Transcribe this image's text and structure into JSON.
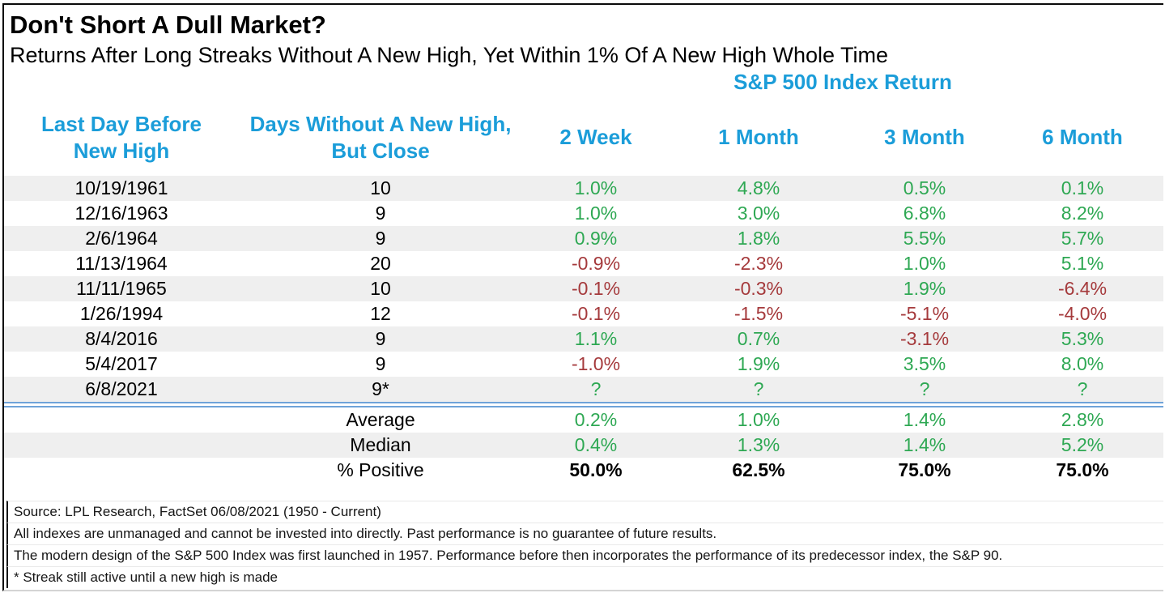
{
  "title": "Don't Short A Dull Market?",
  "subtitle": "Returns After Long Streaks Without A New High, Yet Within 1% Of A New High Whole Time",
  "colors": {
    "header_blue": "#1b9dd9",
    "positive_green": "#2ea853",
    "negative_red": "#a53a3c",
    "row_alt_gray": "#efefef",
    "divider_blue": "#6fa3d9"
  },
  "chart_data": {
    "type": "table",
    "title": "Don't Short A Dull Market?",
    "subtitle": "Returns After Long Streaks Without A New High, Yet Within 1% Of A New High Whole Time",
    "group_header": "S&P 500 Index Return",
    "columns": [
      "Last Day Before New High",
      "Days Without A New High, But Close",
      "2 Week",
      "1 Month",
      "3 Month",
      "6 Month"
    ],
    "rows": [
      {
        "date": "10/19/1961",
        "days": "10",
        "returns": [
          {
            "v": "1.0%",
            "sign": "pos"
          },
          {
            "v": "4.8%",
            "sign": "pos"
          },
          {
            "v": "0.5%",
            "sign": "pos"
          },
          {
            "v": "0.1%",
            "sign": "pos"
          }
        ]
      },
      {
        "date": "12/16/1963",
        "days": "9",
        "returns": [
          {
            "v": "1.0%",
            "sign": "pos"
          },
          {
            "v": "3.0%",
            "sign": "pos"
          },
          {
            "v": "6.8%",
            "sign": "pos"
          },
          {
            "v": "8.2%",
            "sign": "pos"
          }
        ]
      },
      {
        "date": "2/6/1964",
        "days": "9",
        "returns": [
          {
            "v": "0.9%",
            "sign": "pos"
          },
          {
            "v": "1.8%",
            "sign": "pos"
          },
          {
            "v": "5.5%",
            "sign": "pos"
          },
          {
            "v": "5.7%",
            "sign": "pos"
          }
        ]
      },
      {
        "date": "11/13/1964",
        "days": "20",
        "returns": [
          {
            "v": "-0.9%",
            "sign": "neg"
          },
          {
            "v": "-2.3%",
            "sign": "neg"
          },
          {
            "v": "1.0%",
            "sign": "pos"
          },
          {
            "v": "5.1%",
            "sign": "pos"
          }
        ]
      },
      {
        "date": "11/11/1965",
        "days": "10",
        "returns": [
          {
            "v": "-0.1%",
            "sign": "neg"
          },
          {
            "v": "-0.3%",
            "sign": "neg"
          },
          {
            "v": "1.9%",
            "sign": "pos"
          },
          {
            "v": "-6.4%",
            "sign": "neg"
          }
        ]
      },
      {
        "date": "1/26/1994",
        "days": "12",
        "returns": [
          {
            "v": "-0.1%",
            "sign": "neg"
          },
          {
            "v": "-1.5%",
            "sign": "neg"
          },
          {
            "v": "-5.1%",
            "sign": "neg"
          },
          {
            "v": "-4.0%",
            "sign": "neg"
          }
        ]
      },
      {
        "date": "8/4/2016",
        "days": "9",
        "returns": [
          {
            "v": "1.1%",
            "sign": "pos"
          },
          {
            "v": "0.7%",
            "sign": "pos"
          },
          {
            "v": "-3.1%",
            "sign": "neg"
          },
          {
            "v": "5.3%",
            "sign": "pos"
          }
        ]
      },
      {
        "date": "5/4/2017",
        "days": "9",
        "returns": [
          {
            "v": "-1.0%",
            "sign": "neg"
          },
          {
            "v": "1.9%",
            "sign": "pos"
          },
          {
            "v": "3.5%",
            "sign": "pos"
          },
          {
            "v": "8.0%",
            "sign": "pos"
          }
        ]
      },
      {
        "date": "6/8/2021",
        "days": "9*",
        "returns": [
          {
            "v": "?",
            "sign": "pos"
          },
          {
            "v": "?",
            "sign": "pos"
          },
          {
            "v": "?",
            "sign": "pos"
          },
          {
            "v": "?",
            "sign": "pos"
          }
        ]
      }
    ],
    "summary": [
      {
        "label": "Average",
        "style": "pos",
        "values": [
          "0.2%",
          "1.0%",
          "1.4%",
          "2.8%"
        ]
      },
      {
        "label": "Median",
        "style": "pos",
        "values": [
          "0.4%",
          "1.3%",
          "1.4%",
          "5.2%"
        ]
      },
      {
        "label": "% Positive",
        "style": "bold",
        "values": [
          "50.0%",
          "62.5%",
          "75.0%",
          "75.0%"
        ]
      }
    ],
    "footnotes": [
      "Source: LPL Research, FactSet 06/08/2021 (1950 - Current)",
      "All indexes are unmanaged and cannot be invested into directly. Past performance is no guarantee of future results.",
      "The modern design of the S&P 500 Index was first launched in 1957. Performance before then incorporates the performance of its predecessor index, the S&P 90.",
      "* Streak still active until a new high is made"
    ]
  }
}
